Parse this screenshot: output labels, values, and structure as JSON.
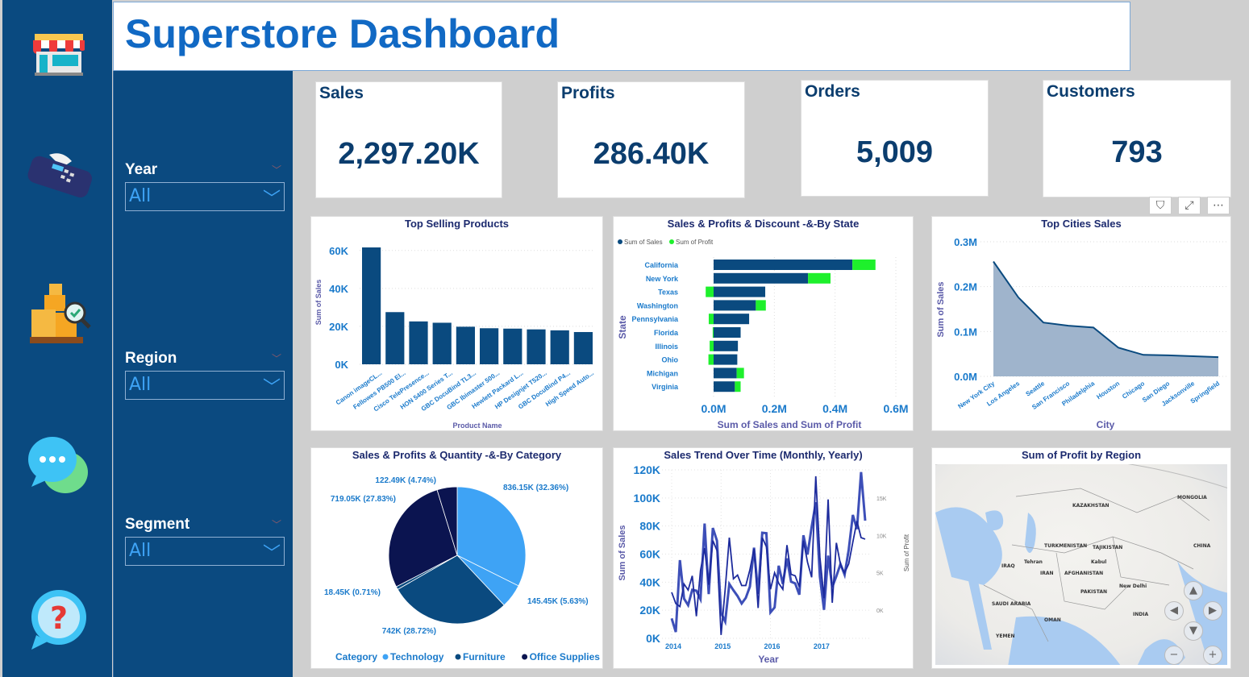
{
  "title": "Superstore Dashboard",
  "nav_icons": [
    "store-icon",
    "pos-terminal-icon",
    "inventory-search-icon",
    "chat-icon",
    "help-icon"
  ],
  "filters": [
    {
      "label": "Year",
      "value": "All"
    },
    {
      "label": "Region",
      "value": "All"
    },
    {
      "label": "Segment",
      "value": "All"
    }
  ],
  "kpis": [
    {
      "label": "Sales",
      "value": "2,297.20K"
    },
    {
      "label": "Profits",
      "value": "286.40K"
    },
    {
      "label": "Orders",
      "value": "5,009"
    },
    {
      "label": "Customers",
      "value": "793"
    }
  ],
  "visual_header": {
    "filter": "⛉",
    "focus": "⤢",
    "more": "⋯"
  },
  "colors": {
    "sales": "#0a4a7f",
    "profit": "#1ef02c",
    "technology": "#3ea3f5",
    "furniture": "#0a4a7f",
    "office": "#0b1450",
    "axis": "#1a7acb"
  },
  "chart_data": [
    {
      "type": "bar",
      "title": "Top Selling Products",
      "xlabel": "Product Name",
      "ylabel": "Sum of Sales",
      "ylim": [
        0,
        65000
      ],
      "yticks": [
        "0K",
        "20K",
        "40K",
        "60K"
      ],
      "categories": [
        "Canon imageCL...",
        "Fellowes PB500 El...",
        "Cisco TelePresence...",
        "HON 5400 Series T...",
        "GBC DocuBind TL3...",
        "GBC Ibimaster 500...",
        "Hewlett Packard L...",
        "HP Designjet T520...",
        "GBC DocuBind P4...",
        "High Speed Auto..."
      ],
      "values": [
        61600,
        27500,
        22600,
        21900,
        19800,
        19000,
        18800,
        18400,
        17900,
        17000
      ]
    },
    {
      "type": "bar",
      "orientation": "horizontal",
      "title": "Sales & Profits & Discount -&-By State",
      "xlabel": "Sum of Sales and Sum of Profit",
      "ylabel": "State",
      "legend": [
        "Sum of Sales",
        "Sum of Profit"
      ],
      "xticks": [
        "0.0M",
        "0.2M",
        "0.4M",
        "0.6M"
      ],
      "xlim": [
        -0.04,
        0.6
      ],
      "categories": [
        "California",
        "New York",
        "Texas",
        "Washington",
        "Pennsylvania",
        "Florida",
        "Illinois",
        "Ohio",
        "Michigan",
        "Virginia"
      ],
      "series": [
        {
          "name": "Sum of Sales",
          "values": [
            0.457,
            0.311,
            0.17,
            0.139,
            0.117,
            0.089,
            0.08,
            0.078,
            0.076,
            0.07
          ]
        },
        {
          "name": "Sum of Profit",
          "values": [
            0.076,
            0.074,
            -0.026,
            0.033,
            -0.016,
            -0.003,
            -0.013,
            -0.017,
            0.024,
            0.019
          ]
        }
      ]
    },
    {
      "type": "area",
      "title": "Top Cities Sales",
      "xlabel": "City",
      "ylabel": "Sum of Sales",
      "ylim": [
        0,
        0.3
      ],
      "yticks": [
        "0.0M",
        "0.1M",
        "0.2M",
        "0.3M"
      ],
      "categories": [
        "New York City",
        "Los Angeles",
        "Seattle",
        "San Francisco",
        "Philadelphia",
        "Houston",
        "Chicago",
        "San Diego",
        "Jacksonville",
        "Springfield"
      ],
      "values": [
        0.256,
        0.176,
        0.12,
        0.113,
        0.109,
        0.064,
        0.048,
        0.047,
        0.045,
        0.043
      ]
    },
    {
      "type": "pie",
      "title": "Sales & Profits & Quantity -&-By Category",
      "legend_title": "Category",
      "legend": [
        "Technology",
        "Furniture",
        "Office Supplies"
      ],
      "slices": [
        {
          "category": "Technology",
          "value": 836.15,
          "label": "836.15K (32.36%)"
        },
        {
          "category": "Technology",
          "value": 145.45,
          "label": "145.45K (5.63%)"
        },
        {
          "category": "Furniture",
          "value": 742,
          "label": "742K (28.72%)"
        },
        {
          "category": "Furniture",
          "value": 18.45,
          "label": "18.45K (0.71%)"
        },
        {
          "category": "Office Supplies",
          "value": 719.05,
          "label": "719.05K (27.83%)"
        },
        {
          "category": "Office Supplies",
          "value": 122.49,
          "label": "122.49K (4.74%)"
        }
      ]
    },
    {
      "type": "line",
      "title": "Sales Trend Over Time (Monthly, Yearly)",
      "xlabel": "Year",
      "ylabel": "Sum of Sales",
      "y2label": "Sum of Profit",
      "ylim": [
        0,
        120000
      ],
      "y2lim": [
        -3750,
        18750
      ],
      "yticks": [
        "0K",
        "20K",
        "40K",
        "60K",
        "80K",
        "100K",
        "120K"
      ],
      "y2ticks": [
        "0K",
        "5K",
        "10K",
        "15K"
      ],
      "xticks": [
        "2014",
        "2015",
        "2016",
        "2017"
      ],
      "series": [
        {
          "name": "Sum of Sales",
          "values": [
            14200,
            4500,
            55700,
            28300,
            23600,
            34600,
            33900,
            27900,
            81800,
            31500,
            78600,
            69500,
            18200,
            11900,
            38700,
            34200,
            30100,
            24800,
            28800,
            36900,
            64600,
            31500,
            75200,
            74900,
            18500,
            22000,
            51700,
            38700,
            56900,
            40300,
            39100,
            31100,
            73400,
            59700,
            79400,
            96900,
            43900,
            20300,
            58900,
            36500,
            44300,
            52900,
            45300,
            63100,
            87900,
            77800,
            118400,
            83800
          ]
        },
        {
          "name": "Sum of Profit",
          "values": [
            2400,
            900,
            500,
            3500,
            2700,
            4600,
            -800,
            5300,
            8300,
            3400,
            9300,
            8000,
            -3300,
            2800,
            9700,
            4200,
            4700,
            3300,
            3300,
            5400,
            8200,
            300,
            9700,
            8500,
            2800,
            5000,
            3600,
            2800,
            8700,
            4800,
            4600,
            3100,
            9300,
            6400,
            4400,
            17900,
            7100,
            1600,
            14800,
            1000,
            9000,
            6100,
            5000,
            6200,
            9100,
            11900,
            9700,
            9500
          ]
        }
      ]
    }
  ],
  "map": {
    "title": "Sum of Profit by Region",
    "labels": [
      "KAZAKHSTAN",
      "MONGOLIA",
      "CHINA",
      "TURKMENISTAN",
      "TAJIKISTAN",
      "IRAN",
      "AFGHANISTAN",
      "PAKISTAN",
      "INDIA",
      "SAUDI ARABIA",
      "IRAQ",
      "OMAN",
      "YEMEN",
      "Tehran",
      "Kabul",
      "New Delhi"
    ]
  }
}
